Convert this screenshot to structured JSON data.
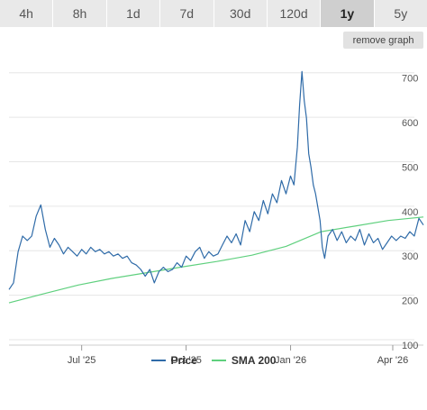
{
  "tabs": [
    {
      "label": "4h",
      "active": false
    },
    {
      "label": "8h",
      "active": false
    },
    {
      "label": "1d",
      "active": false
    },
    {
      "label": "7d",
      "active": false
    },
    {
      "label": "30d",
      "active": false
    },
    {
      "label": "120d",
      "active": false
    },
    {
      "label": "1y",
      "active": true
    },
    {
      "label": "5y",
      "active": false
    }
  ],
  "remove_graph_label": "remove graph",
  "chart_data": {
    "type": "line",
    "ylim": [
      100,
      750
    ],
    "y_ticks": [
      100,
      200,
      300,
      400,
      500,
      600,
      700
    ],
    "x_ticks": [
      {
        "label": "Jul '25",
        "x": "2025-07-01"
      },
      {
        "label": "Oct '25",
        "x": "2025-10-01"
      },
      {
        "label": "Jan '26",
        "x": "2026-01-01"
      },
      {
        "label": "Apr '26",
        "x": "2026-04-01"
      }
    ],
    "xlim": [
      "2025-04-28",
      "2026-04-28"
    ],
    "grid": true,
    "legend_position": "bottom",
    "series": [
      {
        "name": "Price",
        "color": "#2f6ba8",
        "points": [
          [
            "2025-04-28",
            225
          ],
          [
            "2025-05-02",
            240
          ],
          [
            "2025-05-06",
            310
          ],
          [
            "2025-05-10",
            345
          ],
          [
            "2025-05-14",
            335
          ],
          [
            "2025-05-18",
            345
          ],
          [
            "2025-05-22",
            390
          ],
          [
            "2025-05-26",
            415
          ],
          [
            "2025-05-30",
            360
          ],
          [
            "2025-06-03",
            320
          ],
          [
            "2025-06-07",
            340
          ],
          [
            "2025-06-11",
            325
          ],
          [
            "2025-06-15",
            305
          ],
          [
            "2025-06-19",
            320
          ],
          [
            "2025-06-23",
            310
          ],
          [
            "2025-06-27",
            300
          ],
          [
            "2025-07-01",
            315
          ],
          [
            "2025-07-05",
            305
          ],
          [
            "2025-07-09",
            320
          ],
          [
            "2025-07-13",
            310
          ],
          [
            "2025-07-17",
            315
          ],
          [
            "2025-07-21",
            305
          ],
          [
            "2025-07-25",
            310
          ],
          [
            "2025-07-29",
            300
          ],
          [
            "2025-08-02",
            305
          ],
          [
            "2025-08-06",
            295
          ],
          [
            "2025-08-10",
            300
          ],
          [
            "2025-08-14",
            285
          ],
          [
            "2025-08-18",
            280
          ],
          [
            "2025-08-22",
            270
          ],
          [
            "2025-08-26",
            255
          ],
          [
            "2025-08-30",
            270
          ],
          [
            "2025-09-03",
            240
          ],
          [
            "2025-09-07",
            265
          ],
          [
            "2025-09-11",
            275
          ],
          [
            "2025-09-15",
            265
          ],
          [
            "2025-09-19",
            270
          ],
          [
            "2025-09-23",
            285
          ],
          [
            "2025-09-27",
            275
          ],
          [
            "2025-10-01",
            300
          ],
          [
            "2025-10-05",
            290
          ],
          [
            "2025-10-09",
            310
          ],
          [
            "2025-10-13",
            320
          ],
          [
            "2025-10-17",
            295
          ],
          [
            "2025-10-21",
            310
          ],
          [
            "2025-10-25",
            300
          ],
          [
            "2025-10-29",
            305
          ],
          [
            "2025-11-02",
            325
          ],
          [
            "2025-11-06",
            345
          ],
          [
            "2025-11-10",
            330
          ],
          [
            "2025-11-14",
            350
          ],
          [
            "2025-11-18",
            325
          ],
          [
            "2025-11-22",
            380
          ],
          [
            "2025-11-26",
            355
          ],
          [
            "2025-11-30",
            400
          ],
          [
            "2025-12-04",
            380
          ],
          [
            "2025-12-08",
            425
          ],
          [
            "2025-12-12",
            395
          ],
          [
            "2025-12-16",
            440
          ],
          [
            "2025-12-20",
            420
          ],
          [
            "2025-12-24",
            470
          ],
          [
            "2025-12-28",
            440
          ],
          [
            "2026-01-01",
            480
          ],
          [
            "2026-01-04",
            460
          ],
          [
            "2026-01-07",
            545
          ],
          [
            "2026-01-09",
            640
          ],
          [
            "2026-01-11",
            715
          ],
          [
            "2026-01-13",
            650
          ],
          [
            "2026-01-15",
            610
          ],
          [
            "2026-01-17",
            530
          ],
          [
            "2026-01-19",
            500
          ],
          [
            "2026-01-21",
            460
          ],
          [
            "2026-01-23",
            440
          ],
          [
            "2026-01-25",
            410
          ],
          [
            "2026-01-27",
            380
          ],
          [
            "2026-01-29",
            320
          ],
          [
            "2026-01-31",
            295
          ],
          [
            "2026-02-03",
            345
          ],
          [
            "2026-02-07",
            360
          ],
          [
            "2026-02-11",
            335
          ],
          [
            "2026-02-15",
            355
          ],
          [
            "2026-02-19",
            330
          ],
          [
            "2026-02-23",
            345
          ],
          [
            "2026-02-27",
            335
          ],
          [
            "2026-03-03",
            360
          ],
          [
            "2026-03-07",
            325
          ],
          [
            "2026-03-11",
            350
          ],
          [
            "2026-03-15",
            330
          ],
          [
            "2026-03-19",
            340
          ],
          [
            "2026-03-23",
            315
          ],
          [
            "2026-03-27",
            330
          ],
          [
            "2026-03-31",
            345
          ],
          [
            "2026-04-04",
            335
          ],
          [
            "2026-04-08",
            345
          ],
          [
            "2026-04-12",
            340
          ],
          [
            "2026-04-16",
            355
          ],
          [
            "2026-04-20",
            345
          ],
          [
            "2026-04-24",
            385
          ],
          [
            "2026-04-28",
            370
          ]
        ]
      },
      {
        "name": "SMA 200",
        "color": "#5fd07e",
        "points": [
          [
            "2025-04-28",
            195
          ],
          [
            "2025-05-28",
            215
          ],
          [
            "2025-06-28",
            235
          ],
          [
            "2025-07-28",
            250
          ],
          [
            "2025-08-28",
            263
          ],
          [
            "2025-09-28",
            276
          ],
          [
            "2025-10-28",
            288
          ],
          [
            "2025-11-28",
            302
          ],
          [
            "2025-12-28",
            322
          ],
          [
            "2026-01-28",
            355
          ],
          [
            "2026-02-28",
            368
          ],
          [
            "2026-03-28",
            380
          ],
          [
            "2026-04-28",
            388
          ]
        ]
      }
    ]
  }
}
